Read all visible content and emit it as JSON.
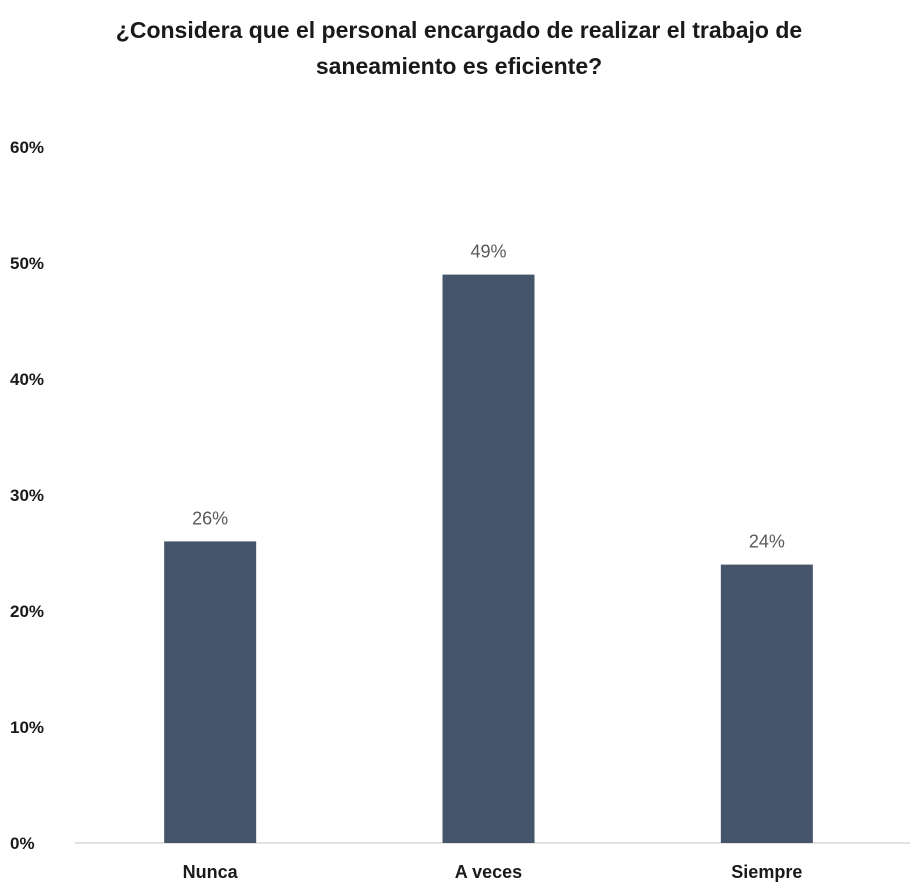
{
  "chart_data": {
    "type": "bar",
    "title": "¿Considera que el personal encargado de realizar el trabajo de saneamiento es eficiente?",
    "categories": [
      "Nunca",
      "A veces",
      "Siempre"
    ],
    "values": [
      26,
      49,
      24
    ],
    "data_labels": [
      "26%",
      "49%",
      "24%"
    ],
    "ylim": [
      0,
      60
    ],
    "y_ticks": [
      0,
      10,
      20,
      30,
      40,
      50,
      60
    ],
    "y_tick_labels": [
      "0%",
      "10%",
      "20%",
      "30%",
      "40%",
      "50%",
      "60%"
    ],
    "bar_color": "#44546a",
    "grid": false,
    "legend": "none"
  }
}
